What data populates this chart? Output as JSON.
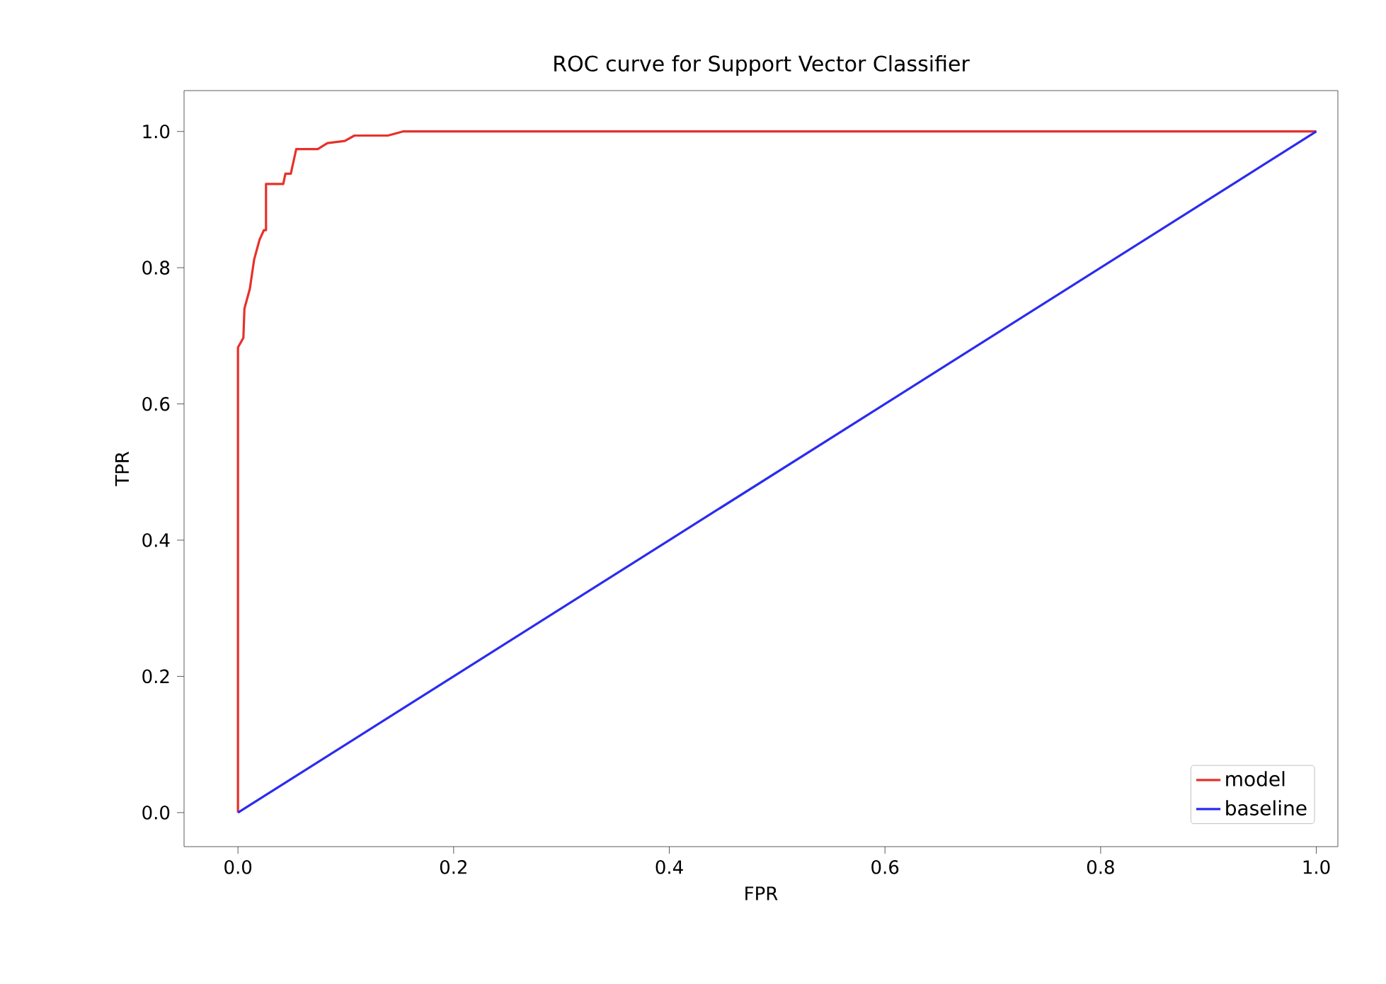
{
  "chart_data": {
    "type": "line",
    "title": "ROC curve for Support Vector Classifier",
    "xlabel": "FPR",
    "ylabel": "TPR",
    "xlim": [
      -0.05,
      1.02
    ],
    "ylim": [
      -0.05,
      1.06
    ],
    "xticks": [
      {
        "value": 0,
        "label": "0.0"
      },
      {
        "value": 0.2,
        "label": "0.2"
      },
      {
        "value": 0.4,
        "label": "0.4"
      },
      {
        "value": 0.6,
        "label": "0.6"
      },
      {
        "value": 0.8,
        "label": "0.8"
      },
      {
        "value": 1,
        "label": "1.0"
      }
    ],
    "yticks": [
      {
        "value": 0,
        "label": "0.0"
      },
      {
        "value": 0.2,
        "label": "0.2"
      },
      {
        "value": 0.4,
        "label": "0.4"
      },
      {
        "value": 0.6,
        "label": "0.6"
      },
      {
        "value": 0.8,
        "label": "0.8"
      },
      {
        "value": 1,
        "label": "1.0"
      }
    ],
    "legend": "bottom right",
    "grid": false,
    "marker": "none",
    "line_style": "solid",
    "series": [
      {
        "name": "model",
        "color": "#e8302b",
        "x": [
          0,
          0,
          0.005,
          0.006,
          0.011,
          0.015,
          0.02,
          0.024,
          0.026,
          0.026,
          0.042,
          0.044,
          0.049,
          0.054,
          0.074,
          0.083,
          0.099,
          0.108,
          0.139,
          0.153,
          1
        ],
        "values": [
          0,
          0.683,
          0.697,
          0.74,
          0.769,
          0.812,
          0.841,
          0.855,
          0.855,
          0.923,
          0.923,
          0.938,
          0.938,
          0.974,
          0.974,
          0.983,
          0.986,
          0.994,
          0.994,
          1,
          1
        ]
      },
      {
        "name": "baseline",
        "color": "#2b2bf0",
        "x": [
          0,
          1
        ],
        "values": [
          0,
          1
        ]
      }
    ]
  }
}
